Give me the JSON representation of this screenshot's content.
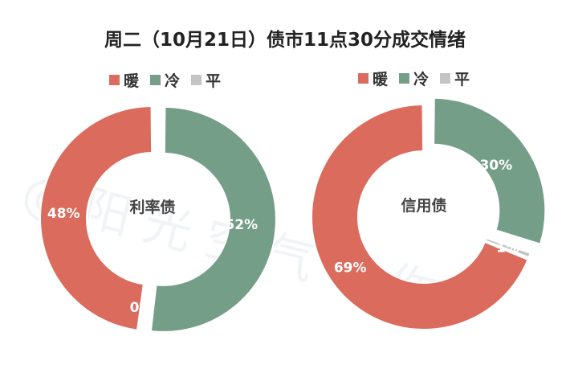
{
  "title": "周二（10月21日）债市11点30分成交情绪",
  "watermark": "@阳光空气与你",
  "legend": [
    {
      "label": "暖",
      "color": "#db6b5c"
    },
    {
      "label": "冷",
      "color": "#759e88"
    },
    {
      "label": "平",
      "color": "#c4c4c4"
    }
  ],
  "chart_data": [
    {
      "type": "pie",
      "variant": "donut",
      "center_label": "利率债",
      "categories": [
        "暖",
        "冷",
        "平"
      ],
      "values": [
        48,
        52,
        0
      ],
      "data_labels": [
        "48%",
        "52%",
        "0%"
      ],
      "colors": [
        "#db6b5c",
        "#759e88",
        "#c4c4c4"
      ],
      "exploded": [
        "冷"
      ],
      "legend_position": "top"
    },
    {
      "type": "pie",
      "variant": "donut",
      "center_label": "信用债",
      "categories": [
        "暖",
        "冷",
        "平"
      ],
      "values": [
        69,
        30,
        1
      ],
      "data_labels": [
        "69%",
        "30%",
        "1%"
      ],
      "colors": [
        "#db6b5c",
        "#759e88",
        "#c4c4c4"
      ],
      "exploded": [
        "冷"
      ],
      "legend_position": "top"
    }
  ]
}
